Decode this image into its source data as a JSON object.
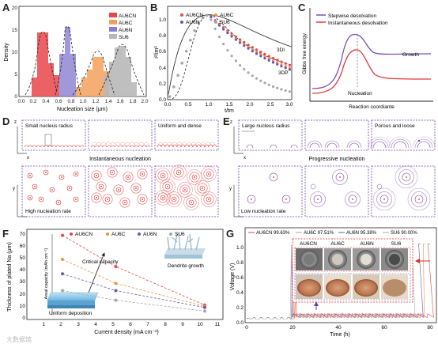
{
  "panel_labels": {
    "A": "A",
    "B": "B",
    "C": "C",
    "D": "D",
    "E": "E",
    "F": "F",
    "G": "G"
  },
  "colors": {
    "AU6CN": "#e8454a",
    "AU6C": "#f19140",
    "AU6N": "#6a55b5",
    "SU6": "#a8a8a8",
    "stepwise": "#7a4fb0",
    "instantaneous": "#e23a3a",
    "red_dot": "#e02a2a",
    "purple_dot": "#7a3fa8"
  },
  "panelA": {
    "xlabel": "Nucleation size (μm)",
    "ylabel": "Density",
    "xticks": [
      "0.0",
      "0.2",
      "0.4",
      "0.6",
      "0.8",
      "1.0",
      "1.2",
      "1.4",
      "1.6",
      "1.8",
      "2.0"
    ],
    "yticks": [
      "0",
      "5",
      "10",
      "15",
      "20"
    ],
    "legend": [
      "AU6CN",
      "AU6C",
      "AU6N",
      "SU6"
    ]
  },
  "panelB": {
    "xlabel": "t/tm",
    "ylabel": "i²/im²",
    "xticks": [
      "0.0",
      "0.5",
      "1.0",
      "1.5",
      "2.0",
      "2.5",
      "3.0"
    ],
    "yticks": [
      "0.0",
      "0.2",
      "0.4",
      "0.6",
      "0.8",
      "1.0"
    ],
    "legend": [
      "AU6CN",
      "AU6C",
      "AU6N",
      "SU6"
    ],
    "curve_3di": "3DI",
    "curve_3dp": "3DP"
  },
  "panelC": {
    "legend_stepwise": "Stepwise desolvation",
    "legend_instant": "Instantaneous desolvation",
    "ylabel": "Gibbs free energy",
    "xlabel": "Reaction coordiante",
    "growth": "Growth",
    "nucleation": "Nucleation"
  },
  "panelD": {
    "box1": "Small nucleus radius",
    "box3": "Uniform and dense",
    "caption": "Instantaneous nucleation",
    "box4": "High nucleation rate",
    "axis_z": "z",
    "axis_x": "x",
    "axis_y": "y"
  },
  "panelE": {
    "box1": "Large nucleus radius",
    "box3": "Porous and loose",
    "caption": "Progressive nucleation",
    "box4": "Low nucleation rate",
    "axis_z": "z",
    "axis_x": "x",
    "axis_y": "y"
  },
  "panelF": {
    "ylabel": "Thickness of plated Na (μm)",
    "xlabel": "Current density (mA cm⁻²)",
    "inset_ylabel": "Areal capacity (mAh cm⁻²)",
    "xticks": [
      "1",
      "2",
      "3",
      "4",
      "5",
      "6",
      "7",
      "8",
      "9",
      "10",
      "11"
    ],
    "yticks": [
      "0",
      "10",
      "20",
      "30",
      "40",
      "50",
      "60",
      "70"
    ],
    "legend": [
      "AU6CN",
      "AU6C",
      "AU6N",
      "SU6"
    ],
    "critical": "Critical capacity",
    "dendrite": "Dendrite growth",
    "uniform": "Uniform deposition"
  },
  "panelG": {
    "legend": [
      "AU6CN 99.63%",
      "AU6C 97.51%",
      "AU6N 95.38%",
      "SU6 90.00%"
    ],
    "ylabel": "Voltage (V)",
    "xlabel": "Time (h)",
    "xticks": [
      "0",
      "20",
      "40",
      "60",
      "80"
    ],
    "yticks": [
      "0.0",
      "0.2",
      "0.4",
      "0.6",
      "0.8",
      "1.0"
    ],
    "photo_labels": [
      "AU6CN",
      "AU6C",
      "AU6N",
      "SU6"
    ]
  },
  "watermark": "大数据馆"
}
